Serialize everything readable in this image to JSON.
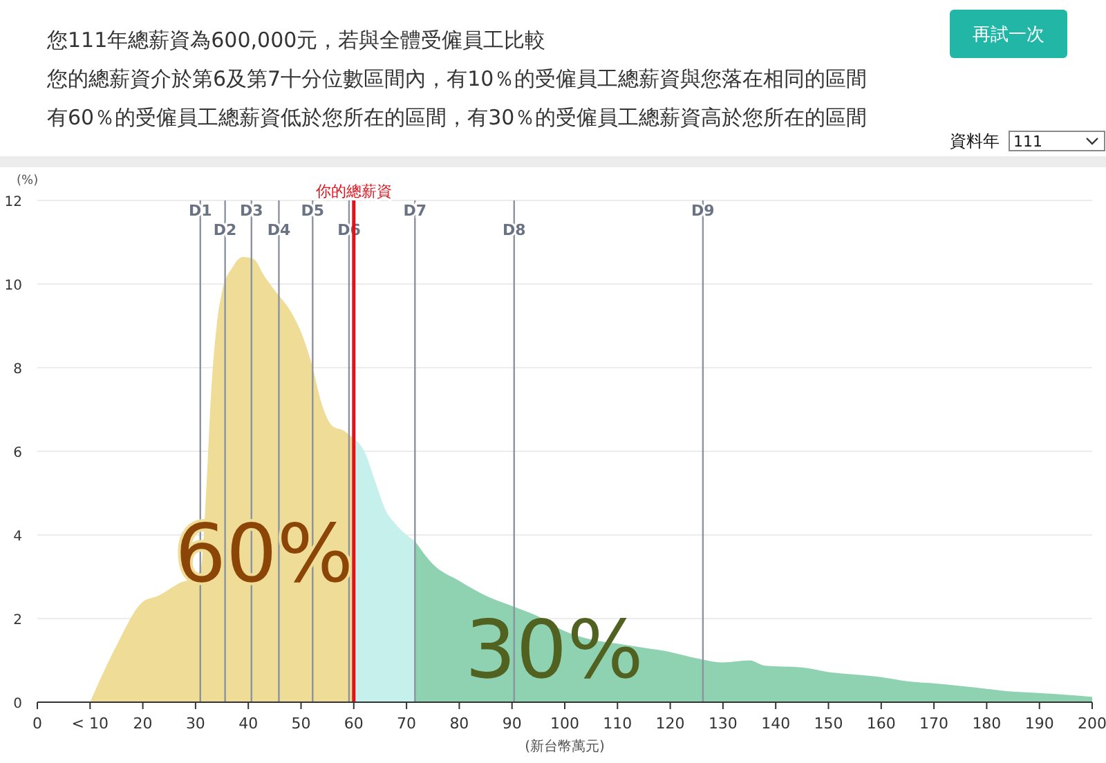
{
  "chart_data": {
    "type": "area",
    "title": "您111年總薪資為600,000元，若與全體受僱員工比較",
    "subtitle": "您的總薪資介於第6及第7十分位數區間內，有10％的受僱員工總薪資與您落在相同的區間",
    "xlabel": "(新台幣萬元)",
    "ylabel": "(%)",
    "series": [
      {
        "color": "#efdc96",
        "x": [
          10,
          15,
          20,
          23,
          27,
          30,
          31,
          32,
          33,
          34,
          35,
          37,
          39,
          41,
          43,
          45,
          48,
          50,
          52,
          54,
          56,
          58,
          60
        ],
        "values": [
          0,
          1.35,
          2.4,
          2.55,
          2.85,
          3.0,
          3.2,
          5.0,
          7.5,
          9.0,
          9.8,
          10.4,
          10.65,
          10.6,
          10.2,
          9.85,
          9.35,
          8.85,
          8.1,
          7.1,
          6.6,
          6.5,
          6.3
        ]
      },
      {
        "color": "#c6f0ec",
        "x": [
          60,
          62,
          64,
          66,
          68,
          70,
          71.6
        ],
        "values": [
          6.3,
          6.0,
          5.3,
          4.6,
          4.25,
          4.0,
          3.85
        ]
      },
      {
        "color": "#8fd2b1",
        "x": [
          71.6,
          75,
          80,
          85,
          90,
          95,
          100,
          105,
          110,
          115,
          120,
          125,
          130,
          135,
          138,
          145,
          150,
          155,
          160,
          165,
          170,
          180,
          185,
          190,
          200
        ],
        "values": [
          3.85,
          3.3,
          2.9,
          2.55,
          2.3,
          2.05,
          1.7,
          1.5,
          1.4,
          1.3,
          1.2,
          1.05,
          0.95,
          1.0,
          0.87,
          0.83,
          0.72,
          0.66,
          0.6,
          0.5,
          0.45,
          0.32,
          0.25,
          0.22,
          0.13
        ]
      }
    ],
    "xlim": [
      0,
      200
    ],
    "xticks": [
      0,
      {
        "value": 10,
        "label": "< 10"
      },
      20,
      30,
      40,
      50,
      60,
      70,
      80,
      90,
      100,
      110,
      120,
      130,
      140,
      150,
      160,
      170,
      180,
      190,
      200
    ],
    "ylim": [
      0,
      12
    ],
    "yticks": [
      0,
      2,
      4,
      6,
      8,
      10,
      12
    ],
    "grid": "y",
    "ref_lines": [
      {
        "axis": "x",
        "value": 30.9,
        "label": "D1"
      },
      {
        "axis": "x",
        "value": 35.6,
        "label": "D2"
      },
      {
        "axis": "x",
        "value": 40.6,
        "label": "D3"
      },
      {
        "axis": "x",
        "value": 45.8,
        "label": "D4"
      },
      {
        "axis": "x",
        "value": 52.2,
        "label": "D5"
      },
      {
        "axis": "x",
        "value": 59.1,
        "label": "D6"
      },
      {
        "axis": "x",
        "value": 71.6,
        "label": "D7"
      },
      {
        "axis": "x",
        "value": 90.4,
        "label": "D8"
      },
      {
        "axis": "x",
        "value": 126.2,
        "label": "D9"
      },
      {
        "axis": "x",
        "value": 60,
        "label": "你的總薪資",
        "color": "#e0131d"
      }
    ],
    "annotations": [
      "有60％的受僱員工總薪資低於您所在的區間，有30％的受僱員工總薪資高於您所在的區間",
      "再試一次",
      "資料年",
      "111",
      "60%",
      "30%"
    ]
  }
}
